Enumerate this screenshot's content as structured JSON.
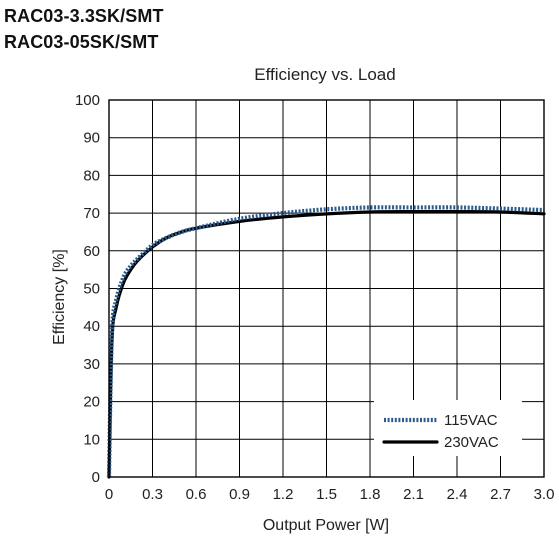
{
  "header": {
    "line1": "RAC03-3.3SK/SMT",
    "line2": "RAC03-05SK/SMT"
  },
  "chart_data": {
    "type": "line",
    "title": "Efficiency vs. Load",
    "xlabel": "Output Power [W]",
    "ylabel": "Efficiency [%]",
    "xlim": [
      0,
      3.0
    ],
    "ylim": [
      0,
      100
    ],
    "xticks": [
      "0",
      "0.3",
      "0.6",
      "0.9",
      "1.2",
      "1.5",
      "1.8",
      "2.1",
      "2.4",
      "2.7",
      "3.0"
    ],
    "yticks": [
      "0",
      "10",
      "20",
      "30",
      "40",
      "50",
      "60",
      "70",
      "80",
      "90",
      "100"
    ],
    "grid": true,
    "legend_position": "bottom-right",
    "series": [
      {
        "name": "115VAC",
        "style": "dotted",
        "color": "#2b5a8c",
        "x": [
          0.0,
          0.02,
          0.05,
          0.1,
          0.15,
          0.2,
          0.3,
          0.4,
          0.5,
          0.6,
          0.9,
          1.2,
          1.5,
          1.8,
          2.1,
          2.4,
          2.7,
          3.0
        ],
        "y": [
          0,
          38,
          47,
          53,
          56,
          58,
          61.5,
          63.5,
          65,
          66,
          68.5,
          70,
          71,
          71.5,
          71.5,
          71.5,
          71.2,
          70.8
        ]
      },
      {
        "name": "230VAC",
        "style": "solid",
        "color": "#000000",
        "x": [
          0.0,
          0.02,
          0.05,
          0.1,
          0.15,
          0.2,
          0.3,
          0.4,
          0.5,
          0.6,
          0.9,
          1.2,
          1.5,
          1.8,
          2.1,
          2.4,
          2.7,
          3.0
        ],
        "y": [
          0,
          36,
          45,
          51.5,
          55,
          57.5,
          61,
          63.5,
          65,
          66,
          67.8,
          69,
          69.8,
          70.3,
          70.4,
          70.4,
          70.3,
          69.8
        ]
      }
    ]
  }
}
